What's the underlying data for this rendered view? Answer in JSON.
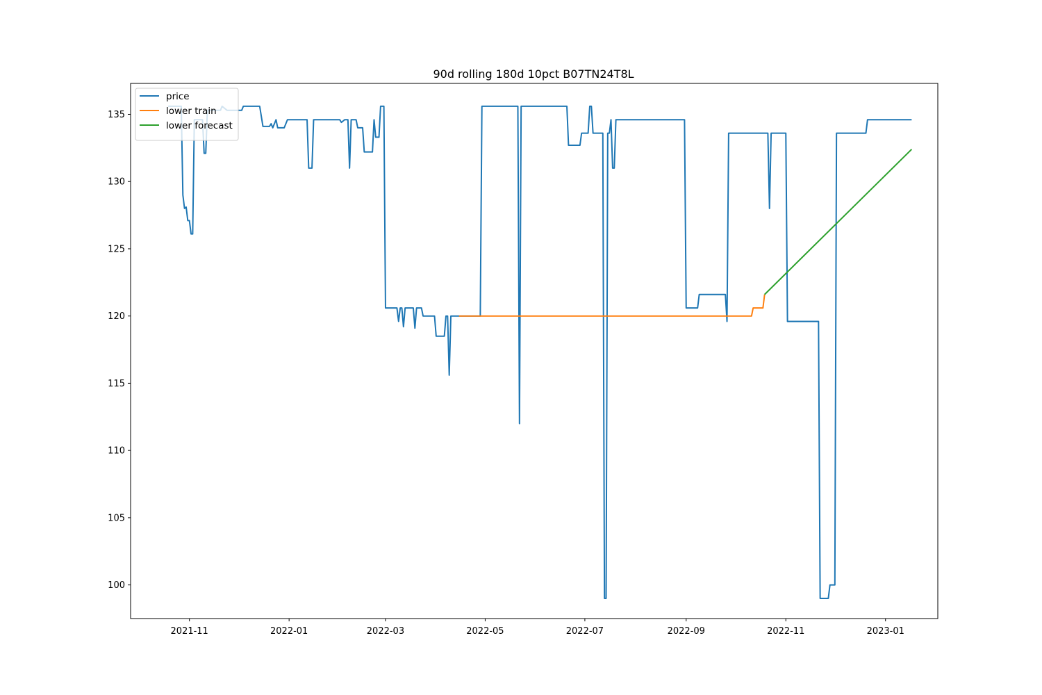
{
  "chart_data": {
    "type": "line",
    "title": "90d rolling 180d 10pct B07TN24T8L",
    "xlabel": "",
    "ylabel": "",
    "x_type": "date",
    "xlim": [
      "2021-09-26",
      "2023-02-02"
    ],
    "ylim": [
      97.5,
      137.3
    ],
    "x_ticks": [
      "2021-11-01",
      "2022-01-01",
      "2022-03-01",
      "2022-05-01",
      "2022-07-01",
      "2022-09-01",
      "2022-11-01",
      "2023-01-01"
    ],
    "x_tick_labels": [
      "2021-11",
      "2022-01",
      "2022-03",
      "2022-05",
      "2022-07",
      "2022-09",
      "2022-11",
      "2023-01"
    ],
    "y_ticks": [
      100,
      105,
      110,
      115,
      120,
      125,
      130,
      135
    ],
    "y_tick_labels": [
      "100",
      "105",
      "110",
      "115",
      "120",
      "125",
      "130",
      "135"
    ],
    "grid": false,
    "legend_position": "top-left",
    "series": [
      {
        "name": "price",
        "color": "#1f77b4",
        "points": [
          [
            "2021-10-19",
            135.6
          ],
          [
            "2021-10-27",
            135.6
          ],
          [
            "2021-10-28",
            129.0
          ],
          [
            "2021-10-29",
            128.0
          ],
          [
            "2021-10-30",
            128.1
          ],
          [
            "2021-10-31",
            127.1
          ],
          [
            "2021-11-01",
            127.1
          ],
          [
            "2021-11-02",
            126.1
          ],
          [
            "2021-11-03",
            126.1
          ],
          [
            "2021-11-04",
            134.6
          ],
          [
            "2021-11-09",
            134.6
          ],
          [
            "2021-11-10",
            132.1
          ],
          [
            "2021-11-11",
            132.1
          ],
          [
            "2021-11-12",
            135.3
          ],
          [
            "2021-11-20",
            135.3
          ],
          [
            "2021-11-21",
            135.6
          ],
          [
            "2021-11-24",
            135.3
          ],
          [
            "2021-12-03",
            135.3
          ],
          [
            "2021-12-04",
            135.6
          ],
          [
            "2021-12-14",
            135.6
          ],
          [
            "2021-12-16",
            134.1
          ],
          [
            "2021-12-20",
            134.1
          ],
          [
            "2021-12-21",
            134.3
          ],
          [
            "2021-12-22",
            134.0
          ],
          [
            "2021-12-24",
            134.6
          ],
          [
            "2021-12-25",
            134.0
          ],
          [
            "2021-12-29",
            134.0
          ],
          [
            "2021-12-31",
            134.6
          ],
          [
            "2022-01-12",
            134.6
          ],
          [
            "2022-01-13",
            131.0
          ],
          [
            "2022-01-15",
            131.0
          ],
          [
            "2022-01-16",
            134.6
          ],
          [
            "2022-02-01",
            134.6
          ],
          [
            "2022-02-02",
            134.4
          ],
          [
            "2022-02-04",
            134.6
          ],
          [
            "2022-02-06",
            134.6
          ],
          [
            "2022-02-07",
            131.0
          ],
          [
            "2022-02-08",
            134.6
          ],
          [
            "2022-02-11",
            134.6
          ],
          [
            "2022-02-12",
            134.0
          ],
          [
            "2022-02-15",
            134.0
          ],
          [
            "2022-02-16",
            132.2
          ],
          [
            "2022-02-21",
            132.2
          ],
          [
            "2022-02-22",
            134.6
          ],
          [
            "2022-02-23",
            133.3
          ],
          [
            "2022-02-25",
            133.3
          ],
          [
            "2022-02-26",
            135.6
          ],
          [
            "2022-02-28",
            135.6
          ],
          [
            "2022-03-01",
            120.6
          ],
          [
            "2022-03-08",
            120.6
          ],
          [
            "2022-03-09",
            119.6
          ],
          [
            "2022-03-10",
            120.6
          ],
          [
            "2022-03-11",
            120.6
          ],
          [
            "2022-03-12",
            119.2
          ],
          [
            "2022-03-13",
            120.6
          ],
          [
            "2022-03-18",
            120.6
          ],
          [
            "2022-03-19",
            119.1
          ],
          [
            "2022-03-20",
            120.6
          ],
          [
            "2022-03-23",
            120.6
          ],
          [
            "2022-03-24",
            120.0
          ],
          [
            "2022-03-31",
            120.0
          ],
          [
            "2022-04-01",
            118.5
          ],
          [
            "2022-04-06",
            118.5
          ],
          [
            "2022-04-07",
            120.0
          ],
          [
            "2022-04-08",
            120.0
          ],
          [
            "2022-04-09",
            115.6
          ],
          [
            "2022-04-10",
            120.0
          ],
          [
            "2022-04-28",
            120.0
          ],
          [
            "2022-04-29",
            135.6
          ],
          [
            "2022-05-21",
            135.6
          ],
          [
            "2022-05-22",
            112.0
          ],
          [
            "2022-05-23",
            135.6
          ],
          [
            "2022-06-20",
            135.6
          ],
          [
            "2022-06-21",
            132.7
          ],
          [
            "2022-06-28",
            132.7
          ],
          [
            "2022-06-29",
            133.6
          ],
          [
            "2022-07-03",
            133.6
          ],
          [
            "2022-07-04",
            135.6
          ],
          [
            "2022-07-05",
            135.6
          ],
          [
            "2022-07-06",
            133.6
          ],
          [
            "2022-07-12",
            133.6
          ],
          [
            "2022-07-13",
            99.0
          ],
          [
            "2022-07-14",
            99.0
          ],
          [
            "2022-07-15",
            133.6
          ],
          [
            "2022-07-16",
            133.6
          ],
          [
            "2022-07-17",
            134.6
          ],
          [
            "2022-07-18",
            131.0
          ],
          [
            "2022-07-19",
            131.0
          ],
          [
            "2022-07-20",
            134.6
          ],
          [
            "2022-08-31",
            134.6
          ],
          [
            "2022-09-01",
            120.6
          ],
          [
            "2022-09-08",
            120.6
          ],
          [
            "2022-09-09",
            121.6
          ],
          [
            "2022-09-25",
            121.6
          ],
          [
            "2022-09-26",
            119.6
          ],
          [
            "2022-09-27",
            133.6
          ],
          [
            "2022-10-21",
            133.6
          ],
          [
            "2022-10-22",
            128.0
          ],
          [
            "2022-10-23",
            133.6
          ],
          [
            "2022-11-01",
            133.6
          ],
          [
            "2022-11-02",
            119.6
          ],
          [
            "2022-11-21",
            119.6
          ],
          [
            "2022-11-22",
            99.0
          ],
          [
            "2022-11-27",
            99.0
          ],
          [
            "2022-11-28",
            100.0
          ],
          [
            "2022-12-01",
            100.0
          ],
          [
            "2022-12-02",
            133.6
          ],
          [
            "2022-12-20",
            133.6
          ],
          [
            "2022-12-21",
            134.6
          ],
          [
            "2023-01-17",
            134.6
          ]
        ]
      },
      {
        "name": "lower train",
        "color": "#ff7f0e",
        "points": [
          [
            "2022-04-15",
            120.0
          ],
          [
            "2022-10-11",
            120.0
          ],
          [
            "2022-10-12",
            120.6
          ],
          [
            "2022-10-18",
            120.6
          ],
          [
            "2022-10-19",
            121.6
          ]
        ]
      },
      {
        "name": "lower forecast",
        "color": "#2ca02c",
        "points": [
          [
            "2022-10-19",
            121.6
          ],
          [
            "2023-01-17",
            132.4
          ]
        ]
      }
    ]
  }
}
